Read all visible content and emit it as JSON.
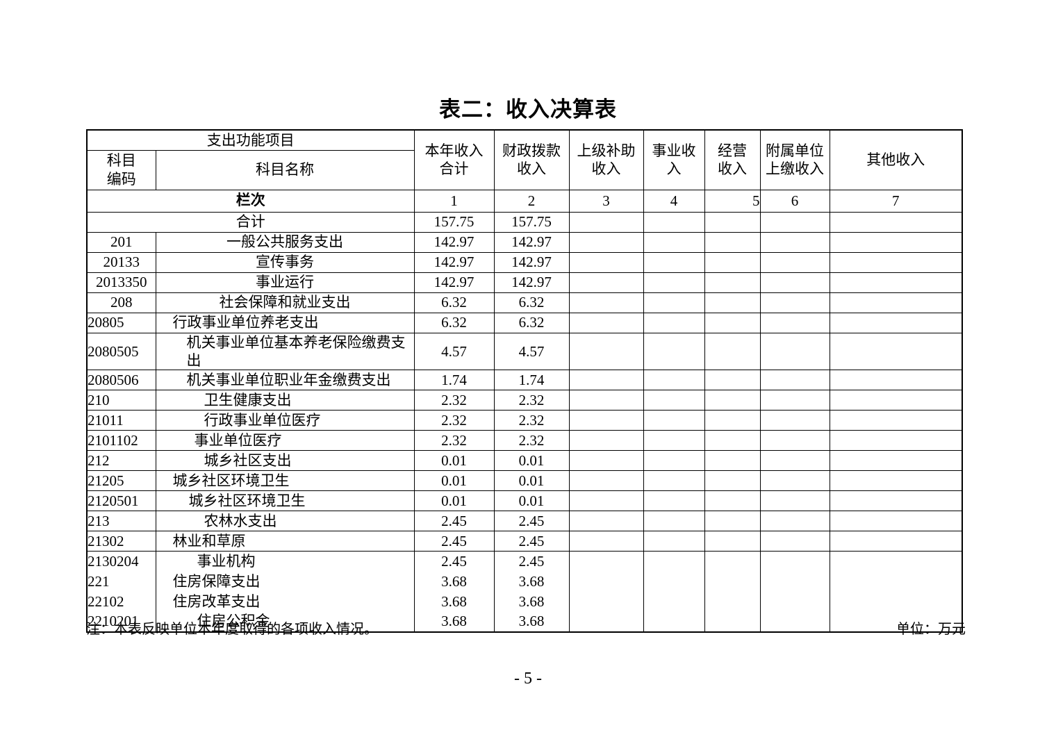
{
  "page": {
    "title": "表二：收入决算表",
    "note": "注：本表反映单位本年度取得的各项收入情况。",
    "unit_label": "单位：万元",
    "page_number": "- 5 -"
  },
  "table": {
    "header": {
      "function_group": "支出功能项目",
      "subject_code": "科目\n编码",
      "subject_name": "科目名称",
      "columns": [
        "本年收入\n合计",
        "财政拨款\n收入",
        "上级补助\n收入",
        "事业收\n入",
        "经营\n收入",
        "附属单位\n上缴收入",
        "其他收入"
      ]
    },
    "lanci_label": "栏次",
    "column_numbers": [
      "1",
      "2",
      "3",
      "4",
      "5",
      "6",
      "7"
    ],
    "rows": [
      {
        "merged": true,
        "name": "合计",
        "v1": "157.75",
        "v2": "157.75"
      },
      {
        "code": "201",
        "name": "一般公共服务支出",
        "v1": "142.97",
        "v2": "142.97",
        "align": "center"
      },
      {
        "code": "20133",
        "name": "宣传事务",
        "v1": "142.97",
        "v2": "142.97",
        "align": "center"
      },
      {
        "code": "2013350",
        "name": "事业运行",
        "v1": "142.97",
        "v2": "142.97",
        "align": "center"
      },
      {
        "code": "208",
        "name": "社会保障和就业支出",
        "v1": "6.32",
        "v2": "6.32",
        "align": "center"
      },
      {
        "code": "20805",
        "name": "行政事业单位养老支出",
        "v1": "6.32",
        "v2": "6.32",
        "align": "left",
        "pad": 24
      },
      {
        "code": "2080505",
        "name": "机关事业单位基本养老保险缴费支出",
        "v1": "4.57",
        "v2": "4.57",
        "align": "left",
        "pad": 44
      },
      {
        "code": "2080506",
        "name": "机关事业单位职业年金缴费支出",
        "v1": "1.74",
        "v2": "1.74",
        "align": "left",
        "pad": 44
      },
      {
        "code": "210",
        "name": "卫生健康支出",
        "v1": "2.32",
        "v2": "2.32",
        "align": "left",
        "pad": 69
      },
      {
        "code": "21011",
        "name": "行政事业单位医疗",
        "v1": "2.32",
        "v2": "2.32",
        "align": "left",
        "pad": 69
      },
      {
        "code": "2101102",
        "name": "事业单位医疗",
        "v1": "2.32",
        "v2": "2.32",
        "align": "left",
        "pad": 55
      },
      {
        "code": "212",
        "name": "城乡社区支出",
        "v1": "0.01",
        "v2": "0.01",
        "align": "left",
        "pad": 69
      },
      {
        "code": "21205",
        "name": "城乡社区环境卫生",
        "v1": "0.01",
        "v2": "0.01",
        "align": "left",
        "pad": 24
      },
      {
        "code": "2120501",
        "name": "城乡社区环境卫生",
        "v1": "0.01",
        "v2": "0.01",
        "align": "left",
        "pad": 47
      },
      {
        "code": "213",
        "name": "农林水支出",
        "v1": "2.45",
        "v2": "2.45",
        "align": "left",
        "pad": 69
      },
      {
        "code": "21302",
        "name": "林业和草原",
        "v1": "2.45",
        "v2": "2.45",
        "align": "left",
        "pad": 24
      },
      {
        "code": "2130204",
        "name": "事业机构",
        "v1": "2.45",
        "v2": "2.45",
        "align": "left",
        "pad": 59
      },
      {
        "code": "221",
        "name": "住房保障支出",
        "v1": "3.68",
        "v2": "3.68",
        "align": "left",
        "pad": 24,
        "noline": true
      },
      {
        "code": "22102",
        "name": "住房改革支出",
        "v1": "3.68",
        "v2": "3.68",
        "align": "left",
        "pad": 24,
        "noline": true
      },
      {
        "code": "2210201",
        "name": "住房公积金",
        "v1": "3.68",
        "v2": "3.68",
        "align": "left",
        "pad": 59,
        "noline": true
      }
    ]
  }
}
